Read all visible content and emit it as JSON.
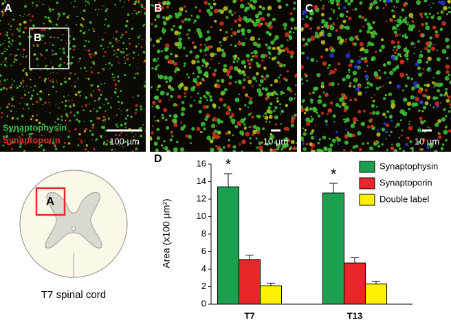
{
  "panels": [
    {
      "label": "A",
      "inset_label": "B",
      "scale": "100 µm"
    },
    {
      "label": "B",
      "scale": "10 µm"
    },
    {
      "label": "C",
      "scale": "10 µm"
    }
  ],
  "stain_labels": [
    "Synaptophysin",
    "Synaptoporin"
  ],
  "diagram": {
    "inset_label": "A",
    "caption": "T7 spinal cord"
  },
  "chart_data": {
    "type": "bar",
    "panel_label": "D",
    "ylabel": "Area (x100 µm²)",
    "categories": [
      "T7",
      "T13"
    ],
    "series": [
      {
        "name": "Synaptophysin",
        "color": "#1ba04f",
        "values": [
          13.4,
          12.7
        ],
        "errors": [
          1.5,
          1.1
        ]
      },
      {
        "name": "Synaptoporin",
        "color": "#e8262a",
        "values": [
          5.1,
          4.7
        ],
        "errors": [
          0.5,
          0.6
        ]
      },
      {
        "name": "Double label",
        "color": "#ffef00",
        "values": [
          2.1,
          2.3
        ],
        "errors": [
          0.3,
          0.3
        ]
      }
    ],
    "annotations": [
      "*",
      "*"
    ],
    "ylim": [
      0,
      16
    ],
    "yticks": [
      0,
      2,
      4,
      6,
      8,
      10,
      12,
      14,
      16
    ],
    "legend": "upper right"
  }
}
